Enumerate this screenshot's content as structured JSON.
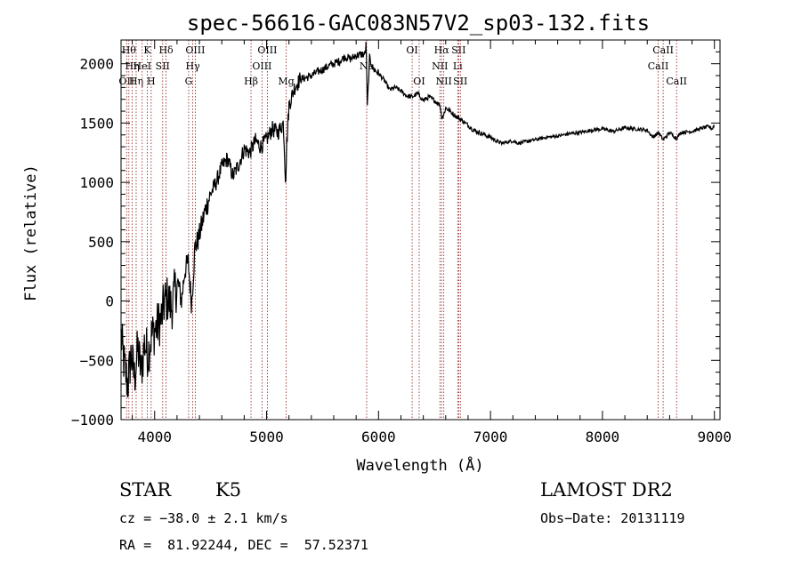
{
  "chart_data": {
    "type": "line",
    "title": "spec-56616-GAC083N57V2_sp03-132.fits",
    "xlabel": "Wavelength (Å)",
    "ylabel": "Flux (relative)",
    "xlim": [
      3700,
      9050
    ],
    "ylim": [
      -1000,
      2200
    ],
    "xticks": [
      4000,
      5000,
      6000,
      7000,
      8000,
      9000
    ],
    "yticks": [
      -1000,
      -500,
      0,
      500,
      1000,
      1500,
      2000
    ],
    "grid": false,
    "series": [
      {
        "x": [
          3700,
          3730,
          3760,
          3790,
          3820,
          3850,
          3880,
          3910,
          3940,
          3970,
          4000,
          4030,
          4060,
          4090,
          4120,
          4150,
          4180,
          4210,
          4240,
          4270,
          4300,
          4330,
          4360,
          4390,
          4420,
          4450,
          4500,
          4550,
          4600,
          4650,
          4700,
          4750,
          4800,
          4850,
          4900,
          4950,
          5000,
          5050,
          5100,
          5150,
          5170,
          5180,
          5200,
          5250,
          5300,
          5350,
          5400,
          5450,
          5500,
          5550,
          5600,
          5650,
          5700,
          5750,
          5800,
          5850,
          5880,
          5890,
          5900,
          5920,
          5950,
          6000,
          6050,
          6100,
          6150,
          6200,
          6250,
          6300,
          6350,
          6400,
          6450,
          6500,
          6550,
          6563,
          6580,
          6600,
          6650,
          6700,
          6750,
          6800,
          6850,
          6900,
          6950,
          7000,
          7050,
          7100,
          7150,
          7200,
          7250,
          7300,
          7400,
          7500,
          7600,
          7700,
          7800,
          7900,
          8000,
          8100,
          8200,
          8300,
          8400,
          8450,
          8500,
          8542,
          8600,
          8662,
          8700,
          8800,
          8900,
          8950,
          8980,
          9000
        ],
        "y": [
          -300,
          -550,
          -700,
          -450,
          -650,
          -400,
          -600,
          -350,
          -450,
          -300,
          -250,
          -200,
          -150,
          0,
          20,
          -60,
          80,
          150,
          0,
          260,
          330,
          -30,
          450,
          520,
          640,
          760,
          900,
          1000,
          1130,
          1200,
          1050,
          1150,
          1280,
          1250,
          1350,
          1300,
          1360,
          1450,
          1420,
          1500,
          1000,
          1330,
          1650,
          1800,
          1870,
          1880,
          1900,
          1930,
          1950,
          1980,
          2000,
          2020,
          2060,
          2040,
          2070,
          2080,
          2080,
          2180,
          1640,
          2050,
          1960,
          1920,
          1860,
          1780,
          1800,
          1770,
          1730,
          1720,
          1750,
          1690,
          1720,
          1690,
          1650,
          1550,
          1560,
          1630,
          1590,
          1550,
          1520,
          1480,
          1440,
          1420,
          1400,
          1380,
          1350,
          1330,
          1340,
          1350,
          1330,
          1340,
          1360,
          1380,
          1390,
          1410,
          1420,
          1440,
          1450,
          1430,
          1460,
          1450,
          1440,
          1380,
          1420,
          1360,
          1420,
          1370,
          1420,
          1430,
          1460,
          1470,
          1450,
          1480
        ]
      }
    ]
  },
  "lines": {
    "dark": [
      {
        "w": 3750,
        "label": "OII",
        "row": 3
      },
      {
        "w": 3770,
        "label": "Hθ",
        "row": 1
      },
      {
        "w": 3800,
        "label": "Hη",
        "row": 2
      },
      {
        "w": 3835,
        "label": "Hη",
        "row": 3
      },
      {
        "w": 3889,
        "label": "HeI",
        "row": 2
      },
      {
        "w": 3934,
        "label": "K",
        "row": 1
      },
      {
        "w": 3969,
        "label": "H",
        "row": 3
      },
      {
        "w": 4072,
        "label": "SII",
        "row": 2
      },
      {
        "w": 4102,
        "label": "Hδ",
        "row": 1
      },
      {
        "w": 4304,
        "label": "G",
        "row": 3
      },
      {
        "w": 4341,
        "label": "Hγ",
        "row": 2
      },
      {
        "w": 4363,
        "label": "OIII",
        "row": 1
      },
      {
        "w": 4861,
        "label": "Hβ",
        "row": 3
      },
      {
        "w": 4959,
        "label": "OIII",
        "row": 2
      },
      {
        "w": 5007,
        "label": "OIII",
        "row": 1
      },
      {
        "w": 5175,
        "label": "Mg",
        "row": 3
      },
      {
        "w": 5894,
        "label": "Na",
        "row": 2
      },
      {
        "w": 6300,
        "label": "OI",
        "row": 1
      },
      {
        "w": 6363,
        "label": "OI",
        "row": 3
      },
      {
        "w": 6548,
        "label": "NII",
        "row": 2
      },
      {
        "w": 6563,
        "label": "Hα",
        "row": 1
      },
      {
        "w": 6583,
        "label": "NII",
        "row": 3
      },
      {
        "w": 6707,
        "label": "Li",
        "row": 2
      },
      {
        "w": 6716,
        "label": "SII",
        "row": 1
      },
      {
        "w": 6731,
        "label": "SII",
        "row": 3
      },
      {
        "w": 8498,
        "label": "CaII",
        "row": 2
      },
      {
        "w": 8542,
        "label": "CaII",
        "row": 1
      },
      {
        "w": 8662,
        "label": "CaII",
        "row": 3
      }
    ]
  },
  "footer": {
    "class_label": "STAR",
    "subclass": "K5",
    "survey": "LAMOST DR2",
    "cz": "cz = −38.0 ± 2.1 km/s",
    "obs_date": "Obs−Date: 20131119",
    "coords": "RA =  81.92244, DEC =  57.52371"
  }
}
